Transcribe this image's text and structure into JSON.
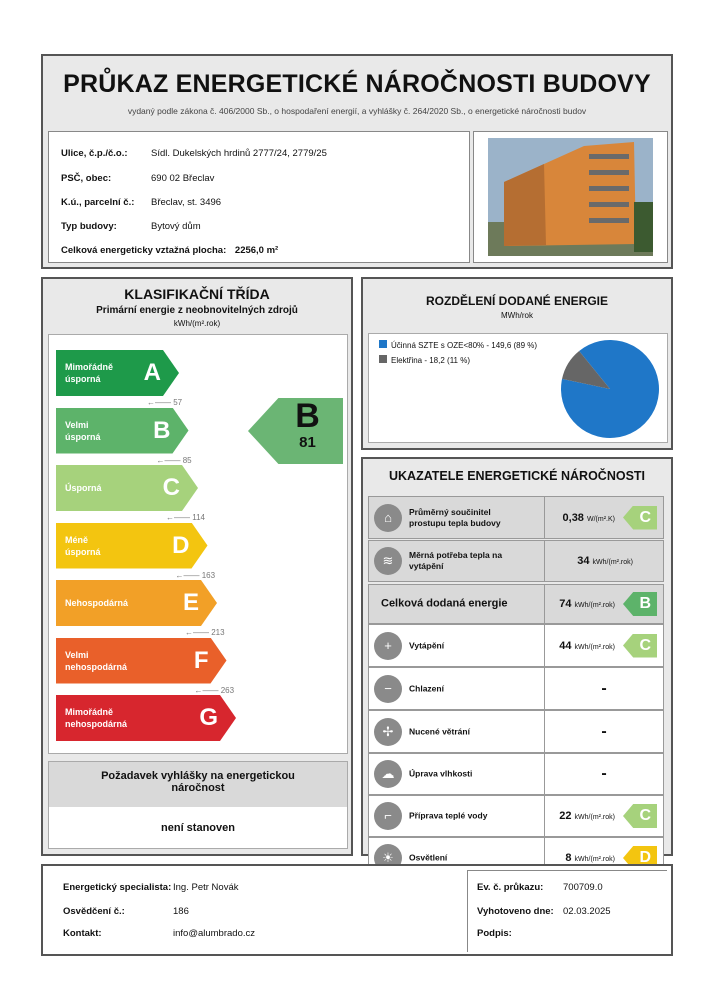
{
  "header": {
    "title": "PRŮKAZ ENERGETICKÉ NÁROČNOSTI BUDOVY",
    "subtitle": "vydaný podle zákona č. 406/2000 Sb., o hospodaření energií, a vyhlášky č. 264/2020 Sb., o energetické náročnosti budov"
  },
  "building": {
    "street_label": "Ulice, č.p./č.o.:",
    "street": "Sídl. Dukelských hrdinů 2777/24,  2779/25",
    "city_label": "PSČ, obec:",
    "city": "690 02 Břeclav",
    "parcel_label": "K.ú., parcelní č.:",
    "parcel": "Břeclav, st. 3496",
    "type_label": "Typ budovy:",
    "type": "Bytový dům",
    "area_label": "Celková energeticky vztažná plocha:",
    "area": "2256,0 m²"
  },
  "classification": {
    "title": "KLASIFIKAČNÍ TŘÍDA",
    "subtitle": "Primární energie z neobnovitelných zdrojů",
    "unit": "kWh/(m².rok)",
    "classes": [
      {
        "letter": "A",
        "name": "Mimořádně úsporná",
        "color": "#1e9a4a",
        "threshold": "57"
      },
      {
        "letter": "B",
        "name": "Velmi úsporná",
        "color": "#5db36a",
        "threshold": "85"
      },
      {
        "letter": "C",
        "name": "Úsporná",
        "color": "#a6d27c",
        "threshold": "114"
      },
      {
        "letter": "D",
        "name": "Méně úsporná",
        "color": "#f3c510",
        "threshold": "163"
      },
      {
        "letter": "E",
        "name": "Nehospodárná",
        "color": "#f2a027",
        "threshold": "213"
      },
      {
        "letter": "F",
        "name": "Velmi nehospodárná",
        "color": "#e9602a",
        "threshold": "263"
      },
      {
        "letter": "G",
        "name": "Mimořádně nehospodárná",
        "color": "#d7262e",
        "threshold": ""
      }
    ],
    "result": {
      "letter": "B",
      "value": "81",
      "color": "#6bb574"
    },
    "requirement_title": "Požadavek vyhlášky na energetickou náročnost",
    "requirement_value": "není stanoven"
  },
  "distribution": {
    "title": "ROZDĚLENÍ DODANÉ ENERGIE",
    "unit": "MWh/rok",
    "chart_data": {
      "type": "pie",
      "slices": [
        {
          "label": "Účinná SZTE s OZE<80% - 149,6 (89 %)",
          "value": 149.6,
          "percent": 89,
          "color": "#1f77c8"
        },
        {
          "label": "Elektřina - 18,2 (11 %)",
          "value": 18.2,
          "percent": 11,
          "color": "#666666"
        }
      ]
    }
  },
  "indicators": {
    "title": "UKAZATELE ENERGETICKÉ NÁROČNOSTI",
    "rows": [
      {
        "icon": "house-icon",
        "label": "Průměrný součinitel prostupu tepla budovy",
        "value": "0,38",
        "unit": "W/(m².K)",
        "class": "C",
        "class_color": "#a6d27c"
      },
      {
        "icon": "heat-demand-icon",
        "label": "Měrná potřeba tepla na vytápění",
        "value": "34",
        "unit": "kWh/(m².rok)",
        "class": "",
        "class_color": ""
      },
      {
        "icon": "",
        "label": "Celková dodaná energie",
        "value": "74",
        "unit": "kWh/(m².rok)",
        "class": "B",
        "class_color": "#5db36a"
      },
      {
        "icon": "heating-icon",
        "label": "Vytápění",
        "value": "44",
        "unit": "kWh/(m².rok)",
        "class": "C",
        "class_color": "#a6d27c"
      },
      {
        "icon": "cooling-icon",
        "label": "Chlazení",
        "value": "-",
        "unit": "",
        "class": "",
        "class_color": ""
      },
      {
        "icon": "fan-icon",
        "label": "Nucené větrání",
        "value": "-",
        "unit": "",
        "class": "",
        "class_color": ""
      },
      {
        "icon": "humidity-icon",
        "label": "Úprava vlhkosti",
        "value": "-",
        "unit": "",
        "class": "",
        "class_color": ""
      },
      {
        "icon": "faucet-icon",
        "label": "Příprava teplé vody",
        "value": "22",
        "unit": "kWh/(m².rok)",
        "class": "C",
        "class_color": "#a6d27c"
      },
      {
        "icon": "lightbulb-icon",
        "label": "Osvětlení",
        "value": "8",
        "unit": "kWh/(m².rok)",
        "class": "D",
        "class_color": "#f3c510"
      }
    ]
  },
  "footer": {
    "specialist_label": "Energetický specialista:",
    "specialist": "Ing. Petr Novák",
    "cert_label": "Osvědčení č.:",
    "cert": "186",
    "contact_label": "Kontakt:",
    "contact": "info@alumbrado.cz",
    "ev_label": "Ev. č. průkazu:",
    "ev": "700709.0",
    "date_label": "Vyhotoveno dne:",
    "date": "02.03.2025",
    "sign_label": "Podpis:"
  }
}
